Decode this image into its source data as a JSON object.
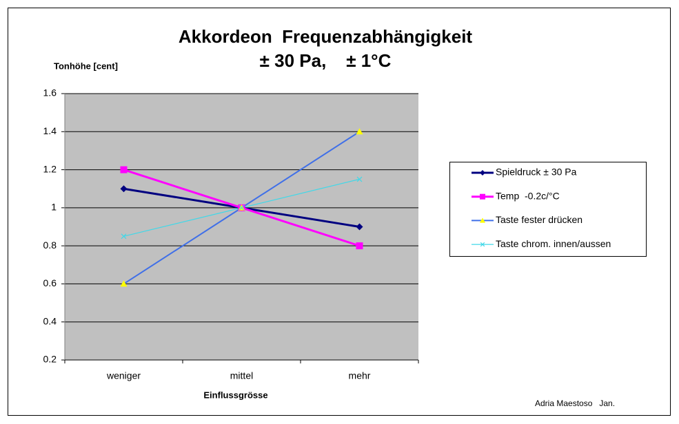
{
  "chart_data": {
    "type": "line",
    "title": "Akkordeon  Frequenzabhängigkeit",
    "subtitle": "± 30 Pa,    ± 1°C",
    "y_label": "Tonhöhe [cent]",
    "x_label": "Einflussgrösse",
    "annotation": "Adria Maestoso   Jan.",
    "categories": [
      "weniger",
      "mittel",
      "mehr"
    ],
    "series": [
      {
        "name": "Spieldruck ± 30 Pa",
        "color": "#000080",
        "marker": "diamond",
        "marker_color": "#000080",
        "values": [
          1.1,
          1.0,
          0.9
        ]
      },
      {
        "name": "Temp  -0.2c/°C",
        "color": "#ff00ff",
        "marker": "square",
        "marker_color": "#ff00ff",
        "values": [
          1.2,
          1.0,
          0.8
        ]
      },
      {
        "name": "Taste fester drücken",
        "color": "#3f6fe8",
        "marker": "triangle",
        "marker_color": "#ffff00",
        "values": [
          0.6,
          1.0,
          1.4
        ]
      },
      {
        "name": "Taste chrom. innen/aussen",
        "color": "#40d8e8",
        "marker": "x",
        "marker_color": "#40d8e8",
        "values": [
          0.85,
          1.0,
          1.15
        ]
      }
    ],
    "ylim": [
      0.2,
      1.6
    ],
    "yticks": [
      0.2,
      0.4,
      0.6,
      0.8,
      1,
      1.2,
      1.4,
      1.6
    ],
    "grid": true,
    "plot_background": "#c0c0c0",
    "legend": "right"
  }
}
